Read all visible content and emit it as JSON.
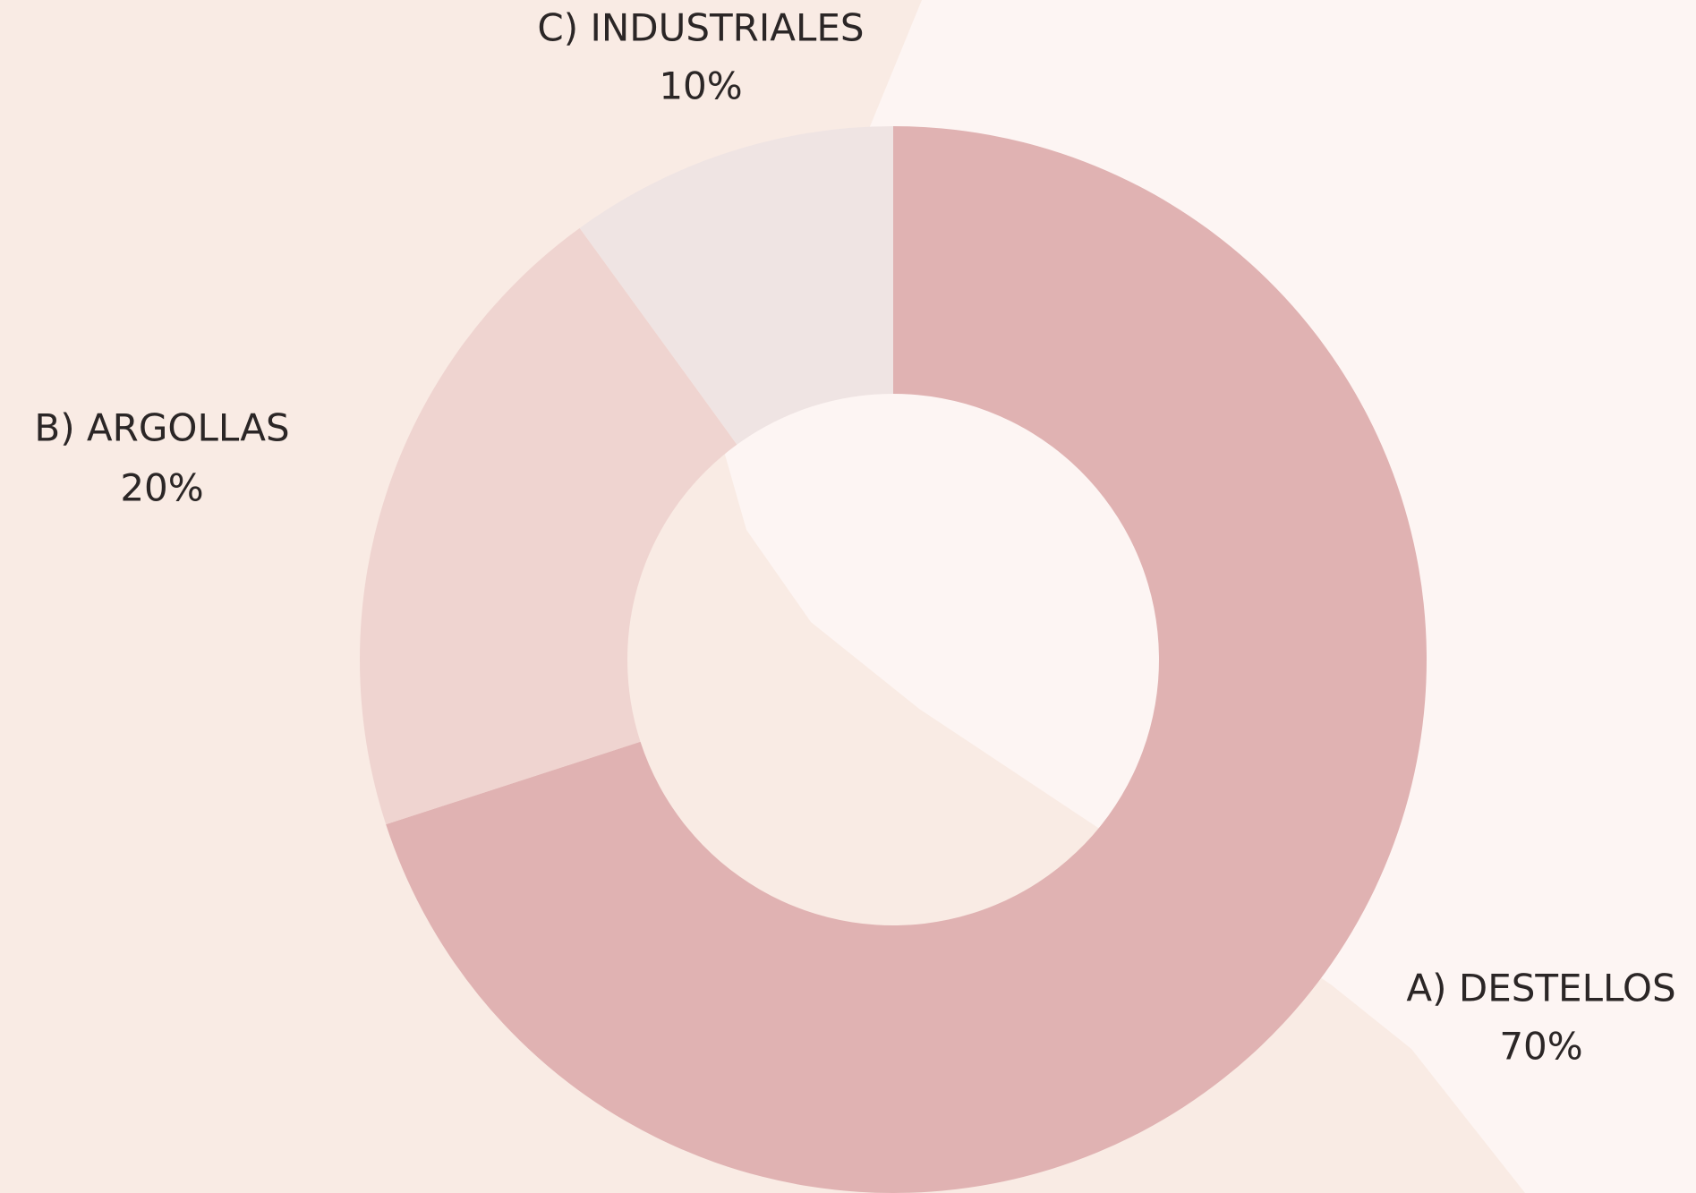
{
  "chart_data": {
    "type": "pie",
    "hole": true,
    "categories": [
      "A) DESTELLOS",
      "B) ARGOLLAS",
      "C) INDUSTRIALES"
    ],
    "values": [
      70,
      20,
      10
    ],
    "value_labels": [
      "70%",
      "20%",
      "10%"
    ],
    "colors": [
      "#e0b2b2",
      "#efd4d0",
      "#efe4e3"
    ]
  }
}
